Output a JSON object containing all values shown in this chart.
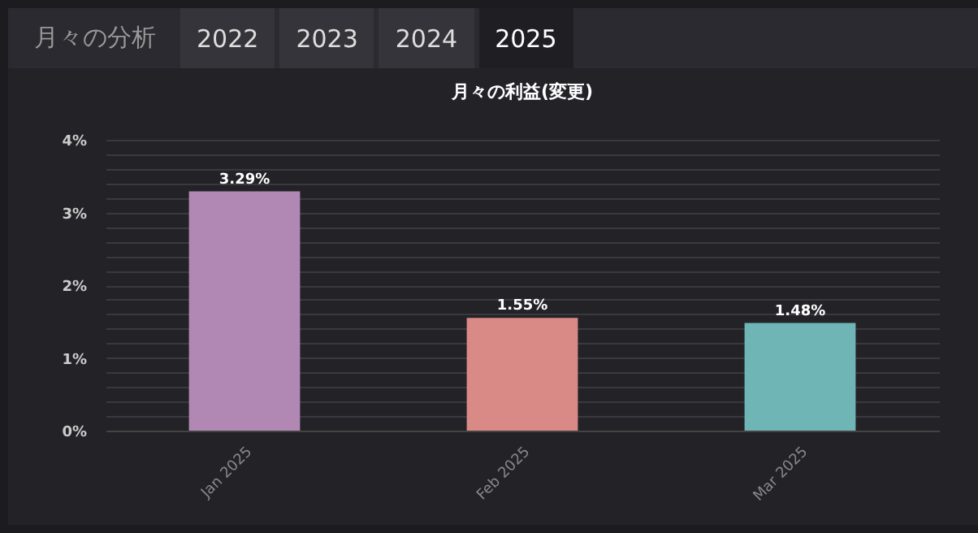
{
  "chart_data": {
    "type": "bar",
    "title": "月々の利益(変更)",
    "annotations": [
      "月々の分析",
      "2022",
      "2023",
      "2024",
      "2025"
    ],
    "categories": [
      "Jan 2025",
      "Feb 2025",
      "Mar 2025"
    ],
    "values": [
      3.29,
      1.55,
      1.48
    ],
    "colors": [
      "#b088b3",
      "#d98a87",
      "#6fb5b5"
    ],
    "value_labels": [
      "3.29%",
      "1.55%",
      "1.48%"
    ],
    "ylim": [
      0,
      4
    ],
    "yticks": [
      {
        "value": 0,
        "label": "0%"
      },
      {
        "value": 0.2,
        "label": null
      },
      {
        "value": 0.4,
        "label": null
      },
      {
        "value": 0.6,
        "label": null
      },
      {
        "value": 0.8,
        "label": null
      },
      {
        "value": 1,
        "label": "1%"
      },
      {
        "value": 1.2,
        "label": null
      },
      {
        "value": 1.4,
        "label": null
      },
      {
        "value": 1.6,
        "label": null
      },
      {
        "value": 1.8,
        "label": null
      },
      {
        "value": 2,
        "label": "2%"
      },
      {
        "value": 2.2,
        "label": null
      },
      {
        "value": 2.4,
        "label": null
      },
      {
        "value": 2.6,
        "label": null
      },
      {
        "value": 2.8,
        "label": null
      },
      {
        "value": 3,
        "label": "3%"
      },
      {
        "value": 3.2,
        "label": null
      },
      {
        "value": 3.4,
        "label": null
      },
      {
        "value": 3.6,
        "label": null
      },
      {
        "value": 3.8,
        "label": null
      },
      {
        "value": 4,
        "label": "4%"
      }
    ],
    "grid": true
  }
}
